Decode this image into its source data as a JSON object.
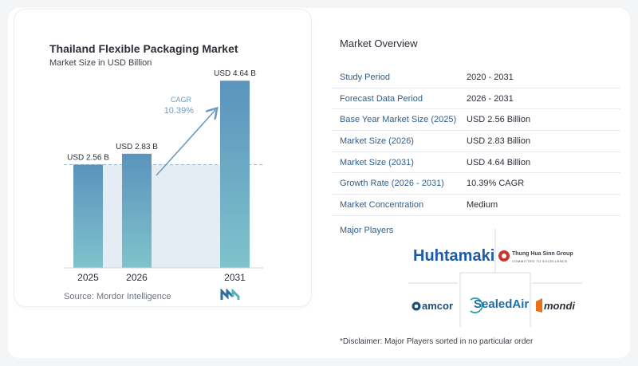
{
  "chart_data": {
    "type": "bar",
    "title": "Thailand Flexible Packaging Market",
    "subtitle": "Market Size in USD Billion",
    "categories": [
      "2025",
      "2026",
      "2031"
    ],
    "values": [
      2.56,
      2.83,
      4.64
    ],
    "data_labels": [
      "USD 2.56 B",
      "USD 2.83 B",
      "USD 4.64 B"
    ],
    "ylim": [
      0,
      5
    ],
    "cagr_label": "CAGR",
    "cagr_value": "10.39%",
    "source": "Source:  Mordor Intelligence",
    "colors": {
      "bar_top": "#5b93bd",
      "bar_bottom": "#7fc3cc",
      "shaded_band": "#e3edf3",
      "arrow": "#6e9cc0",
      "cagr_text": "#6e9cc0"
    }
  },
  "overview": {
    "title": "Market Overview",
    "rows": [
      {
        "key": "Study Period",
        "value": "2020 - 2031"
      },
      {
        "key": "Forecast Data Period",
        "value": "2026 - 2031"
      },
      {
        "key": "Base Year Market Size (2025)",
        "value": "USD 2.56 Billion"
      },
      {
        "key": "Market Size (2026)",
        "value": "USD 2.83 Billion"
      },
      {
        "key": "Market Size (2031)",
        "value": "USD 4.64 Billion"
      },
      {
        "key": "Growth Rate (2026 - 2031)",
        "value": "10.39% CAGR"
      },
      {
        "key": "Market Concentration",
        "value": "Medium"
      }
    ]
  },
  "players": {
    "title": "Major Players",
    "logos": {
      "huhtamaki": "Huhtamaki",
      "thung_hua_sinn": "Thung Hua Sinn Group",
      "thung_hua_sinn_tag": "COMMITTED TO EXCELLENCE",
      "amcor": "amcor",
      "sealed_air": "SealedAir",
      "mondi": "mondi"
    }
  },
  "disclaimer": "*Disclaimer: Major Players sorted in no particular order"
}
